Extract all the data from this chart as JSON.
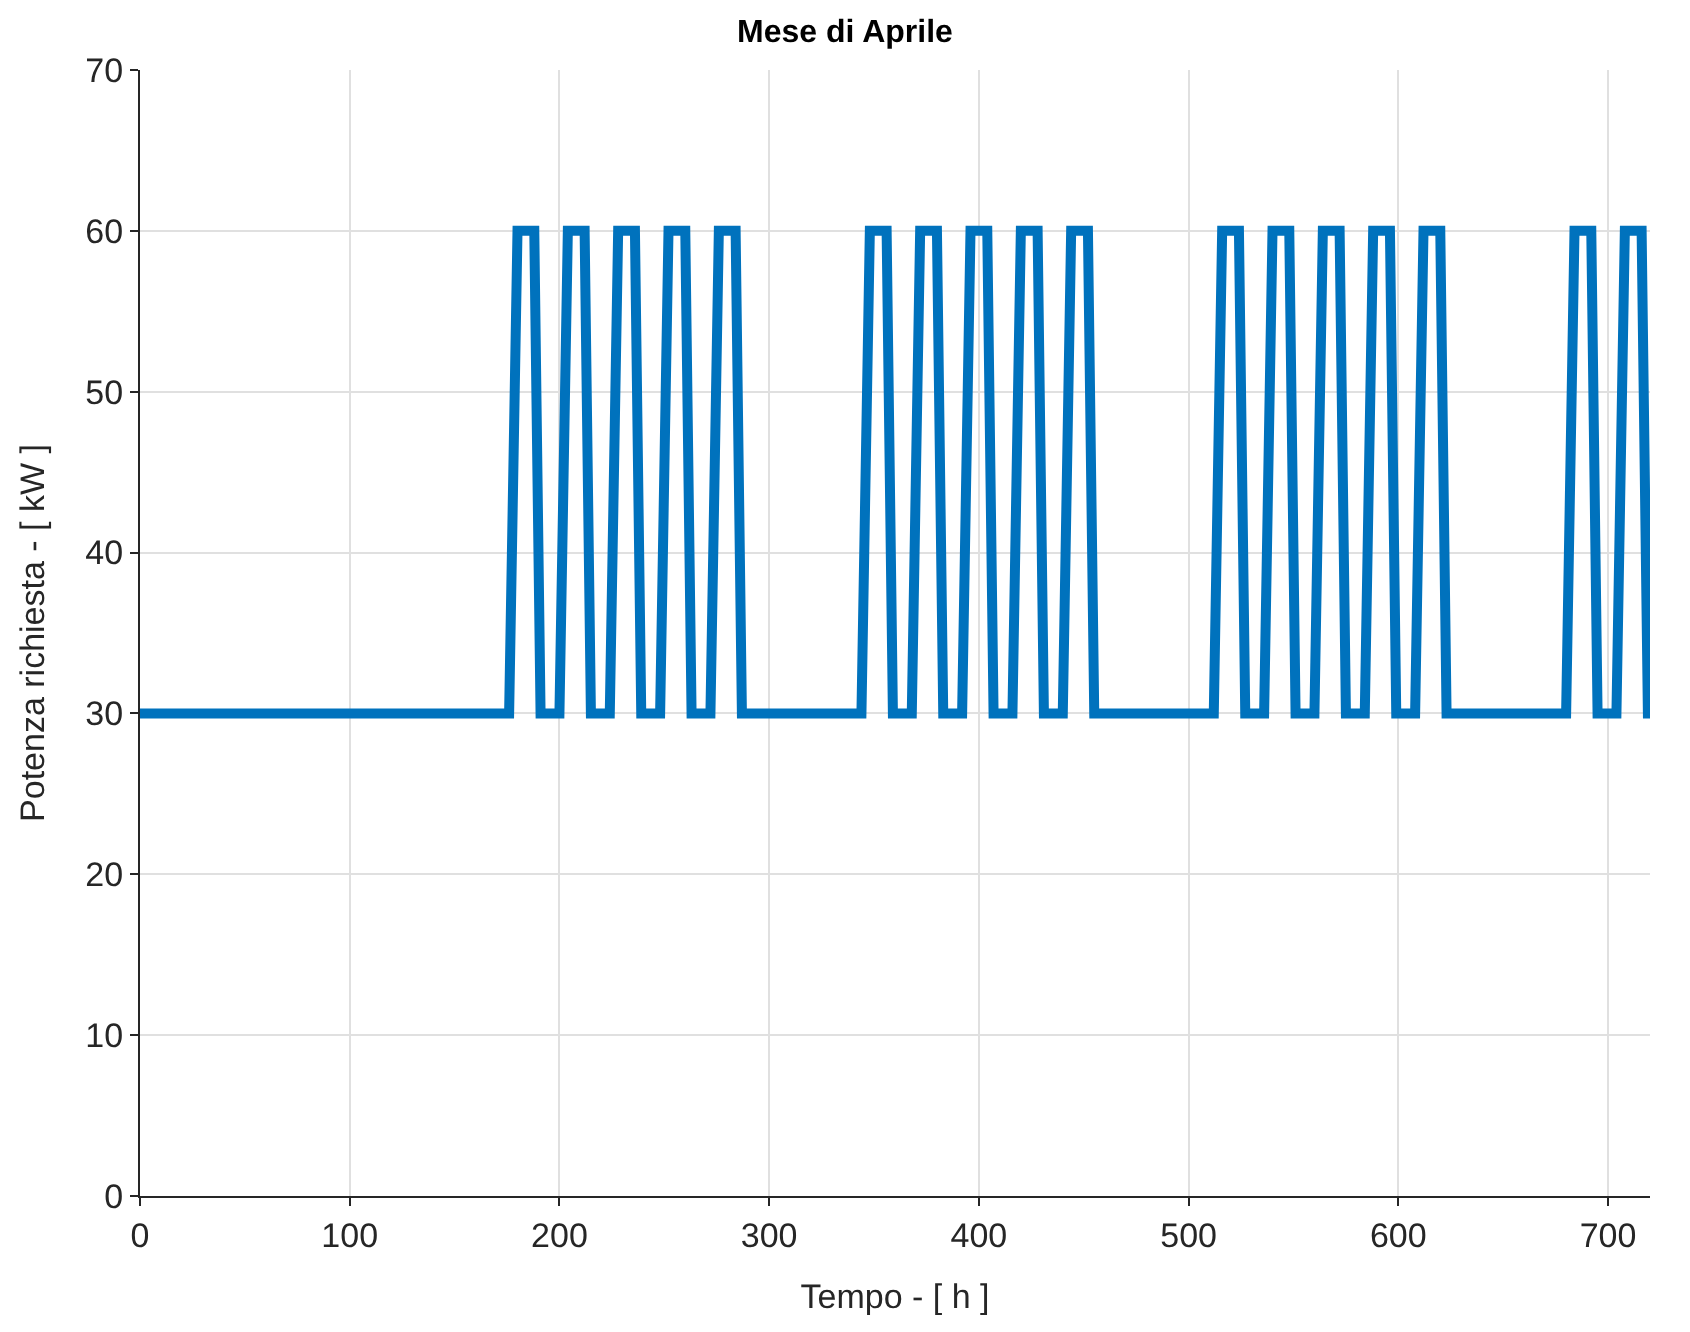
{
  "chart_data": {
    "type": "line",
    "title": "Mese di Aprile",
    "xlabel": "Tempo - [ h ]",
    "ylabel": "Potenza richiesta - [ kW ]",
    "xlim": [
      0,
      720
    ],
    "xticks": [
      0,
      100,
      200,
      300,
      400,
      500,
      600,
      700
    ],
    "ylim": [
      0,
      70
    ],
    "yticks": [
      0,
      10,
      20,
      30,
      40,
      50,
      60,
      70
    ],
    "grid": true,
    "marker": "none",
    "line_style": "solid",
    "series": [
      {
        "color": "#0072bd",
        "x": [
          0,
          176,
          180,
          188,
          191,
          200,
          204,
          212,
          215,
          224,
          228,
          236,
          239,
          248,
          252,
          260,
          263,
          272,
          276,
          284,
          287,
          344,
          348,
          356,
          359,
          368,
          372,
          380,
          383,
          392,
          396,
          404,
          407,
          416,
          420,
          428,
          431,
          440,
          444,
          452,
          455,
          512,
          516,
          524,
          527,
          536,
          540,
          548,
          551,
          560,
          564,
          572,
          575,
          584,
          588,
          596,
          599,
          608,
          612,
          620,
          623,
          680,
          684,
          692,
          695,
          704,
          708,
          716,
          719,
          720
        ],
        "values": [
          30,
          30,
          60,
          60,
          30,
          30,
          60,
          60,
          30,
          30,
          60,
          60,
          30,
          30,
          60,
          60,
          30,
          30,
          60,
          60,
          30,
          30,
          60,
          60,
          30,
          30,
          60,
          60,
          30,
          30,
          60,
          60,
          30,
          30,
          60,
          60,
          30,
          30,
          60,
          60,
          30,
          30,
          60,
          60,
          30,
          30,
          60,
          60,
          30,
          30,
          60,
          60,
          30,
          30,
          60,
          60,
          30,
          30,
          60,
          60,
          30,
          30,
          60,
          60,
          30,
          30,
          60,
          60,
          30,
          30
        ]
      }
    ]
  }
}
